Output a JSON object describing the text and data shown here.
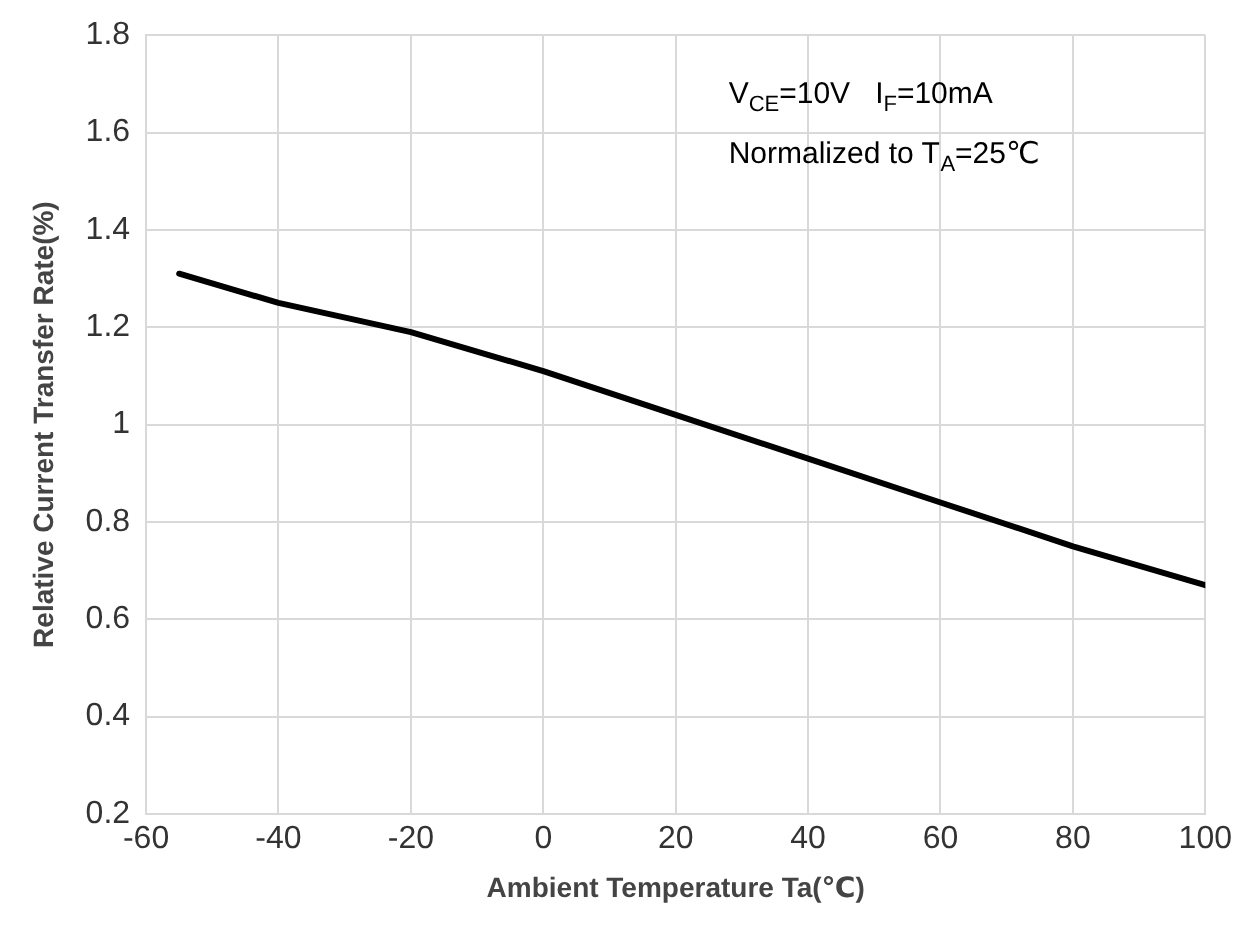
{
  "chart_data": {
    "type": "line",
    "xlabel": "Ambient Temperature Ta(℃)",
    "ylabel": "Relative Current Transfer Rate(%)",
    "x": [
      -55,
      -40,
      -20,
      0,
      20,
      40,
      60,
      80,
      100
    ],
    "series": [
      {
        "color": "#000000",
        "values": [
          1.31,
          1.25,
          1.19,
          1.11,
          1.02,
          0.93,
          0.84,
          0.75,
          0.67
        ]
      }
    ],
    "xlim": [
      -60,
      100
    ],
    "xticks": [
      -60,
      -40,
      -20,
      0,
      20,
      40,
      60,
      80,
      100
    ],
    "ylim": [
      0.2,
      1.8
    ],
    "yticks": [
      0.2,
      0.4,
      0.6,
      0.8,
      1,
      1.2,
      1.4,
      1.6,
      1.8
    ],
    "grid": true,
    "legend": false,
    "marker": "none",
    "line_style": "solid",
    "annotations": [
      "V$_{CE}$=10V   I$_{F}$=10mA",
      "Normalized to T$_{A}$=25℃"
    ]
  }
}
